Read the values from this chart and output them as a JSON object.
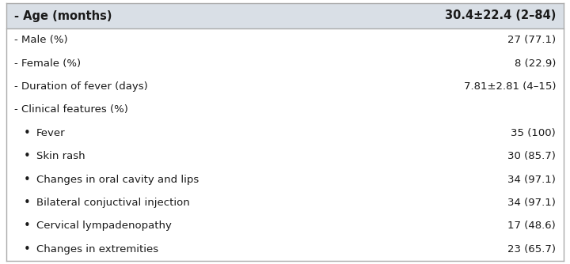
{
  "header_left": "- Age (months)",
  "header_right": "30.4±22.4 (2–84)",
  "header_bg": "#d9dfe6",
  "rows": [
    {
      "left": "- Male (%)",
      "right": "27 (77.1)",
      "bullet": false
    },
    {
      "left": "- Female (%)",
      "right": "8 (22.9)",
      "bullet": false
    },
    {
      "left": "- Duration of fever (days)",
      "right": "7.81±2.81 (4–15)",
      "bullet": false
    },
    {
      "left": "- Clinical features (%)",
      "right": "",
      "bullet": false
    },
    {
      "left": "Fever",
      "right": "35 (100)",
      "bullet": true
    },
    {
      "left": "Skin rash",
      "right": "30 (85.7)",
      "bullet": true
    },
    {
      "left": "Changes in oral cavity and lips",
      "right": "34 (97.1)",
      "bullet": true
    },
    {
      "left": "Bilateral conjuctival injection",
      "right": "34 (97.1)",
      "bullet": true
    },
    {
      "left": "Cervical lympadenopathy",
      "right": "17 (48.6)",
      "bullet": true
    },
    {
      "left": "Changes in extremities",
      "right": "23 (65.7)",
      "bullet": true
    }
  ],
  "border_color": "#aaaaaa",
  "text_color": "#1a1a1a",
  "bg_color": "#ffffff",
  "font_size": 9.5,
  "header_font_size": 10.5,
  "fig_width": 7.2,
  "fig_height": 3.34,
  "dpi": 100
}
